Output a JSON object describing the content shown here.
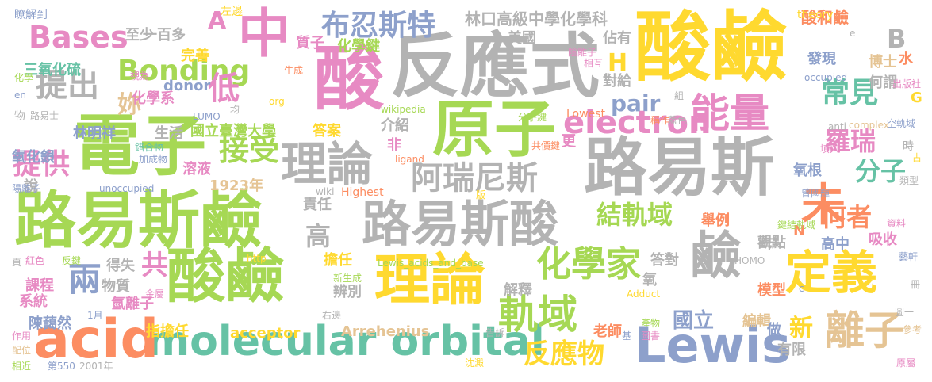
{
  "palette": {
    "gray": "#b3b3b3",
    "yellow": "#ffd92f",
    "green": "#a6d854",
    "pink": "#e78ac3",
    "blue": "#8da0cb",
    "orange": "#fc8d62",
    "teal": "#66c2a5",
    "tan": "#e5c494"
  },
  "words": [
    {
      "text": "反應式",
      "color": "gray"
    },
    {
      "text": "酸鹼",
      "color": "yellow"
    },
    {
      "text": "中",
      "color": "pink"
    },
    {
      "text": "酸",
      "color": "pink"
    },
    {
      "text": "電子",
      "color": "green"
    },
    {
      "text": "原子",
      "color": "green"
    },
    {
      "text": "路易斯",
      "color": "gray"
    },
    {
      "text": "路易斯鹼",
      "color": "green"
    },
    {
      "text": "路易斯酸",
      "color": "gray"
    },
    {
      "text": "酸鹼",
      "color": "green"
    },
    {
      "text": "理論",
      "color": "yellow"
    },
    {
      "text": "molecular orbital",
      "color": "teal"
    },
    {
      "text": "Lewis",
      "color": "blue"
    },
    {
      "text": "acid",
      "color": "orange"
    },
    {
      "text": "定義",
      "color": "yellow"
    },
    {
      "text": "鹼",
      "color": "gray"
    },
    {
      "text": "能量",
      "color": "pink"
    },
    {
      "text": "理論",
      "color": "gray"
    },
    {
      "text": "未",
      "color": "orange"
    },
    {
      "text": "離子",
      "color": "tan"
    },
    {
      "text": "軌域",
      "color": "green"
    },
    {
      "text": "化學家",
      "color": "green"
    },
    {
      "text": "布忍斯特",
      "color": "blue"
    },
    {
      "text": "阿瑞尼斯",
      "color": "gray"
    },
    {
      "text": "Bases",
      "color": "pink"
    },
    {
      "text": "Bonding",
      "color": "green"
    },
    {
      "text": "electron",
      "color": "pink"
    },
    {
      "text": "提出",
      "color": "gray"
    },
    {
      "text": "低",
      "color": "pink"
    },
    {
      "text": "接受",
      "color": "green"
    },
    {
      "text": "常見",
      "color": "teal"
    },
    {
      "text": "羅瑞",
      "color": "pink"
    },
    {
      "text": "分子",
      "color": "teal"
    },
    {
      "text": "何者",
      "color": "orange"
    },
    {
      "text": "結軌域",
      "color": "green"
    },
    {
      "text": "提供",
      "color": "pink"
    },
    {
      "text": "反應物",
      "color": "yellow"
    },
    {
      "text": "兩",
      "color": "blue"
    },
    {
      "text": "共",
      "color": "pink"
    },
    {
      "text": "A",
      "color": "pink"
    },
    {
      "text": "B",
      "color": "gray"
    },
    {
      "text": "H",
      "color": "yellow"
    },
    {
      "text": "高",
      "color": "gray"
    },
    {
      "text": "pair",
      "color": "blue"
    },
    {
      "text": "妳",
      "color": "tan"
    },
    {
      "text": "新",
      "color": "yellow"
    },
    {
      "text": "國立",
      "color": "blue"
    },
    {
      "text": "林口高級中學化學科",
      "color": "gray"
    },
    {
      "text": "酸和鹼",
      "color": "orange"
    },
    {
      "text": "theory",
      "color": "yellow"
    },
    {
      "text": "博士",
      "color": "tan"
    },
    {
      "text": "水",
      "color": "orange"
    },
    {
      "text": "林明祥",
      "color": "blue"
    },
    {
      "text": "生活",
      "color": "gray"
    },
    {
      "text": "一百多",
      "color": "gray"
    },
    {
      "text": "完善",
      "color": "yellow"
    },
    {
      "text": "三氧化硫",
      "color": "teal"
    },
    {
      "text": "化學系",
      "color": "pink"
    },
    {
      "text": "donor",
      "color": "blue"
    },
    {
      "text": "國立臺灣大學",
      "color": "green"
    },
    {
      "text": "答案",
      "color": "yellow"
    },
    {
      "text": "溶液",
      "color": "pink"
    },
    {
      "text": "1923年",
      "color": "tan"
    },
    {
      "text": "氧化鋇",
      "color": "blue"
    },
    {
      "text": "責任",
      "color": "gray"
    },
    {
      "text": "擔任",
      "color": "yellow"
    },
    {
      "text": "Arrehenius",
      "color": "tan"
    },
    {
      "text": "acceptor",
      "color": "yellow"
    },
    {
      "text": "指擔任",
      "color": "yellow"
    },
    {
      "text": "陳藹然",
      "color": "blue"
    },
    {
      "text": "氫離子",
      "color": "pink"
    },
    {
      "text": "系統",
      "color": "pink"
    },
    {
      "text": "課程",
      "color": "pink"
    },
    {
      "text": "得失",
      "color": "gray"
    },
    {
      "text": "物質",
      "color": "gray"
    },
    {
      "text": "辨別",
      "color": "gray"
    },
    {
      "text": "解釋",
      "color": "gray"
    },
    {
      "text": "老師",
      "color": "orange"
    },
    {
      "text": "編輯",
      "color": "tan"
    },
    {
      "text": "有限",
      "color": "gray"
    },
    {
      "text": "做",
      "color": "blue"
    },
    {
      "text": "模型",
      "color": "orange"
    },
    {
      "text": "氧",
      "color": "gray"
    },
    {
      "text": "答對",
      "color": "gray"
    },
    {
      "text": "觀點",
      "color": "gray"
    },
    {
      "text": "高中",
      "color": "blue"
    },
    {
      "text": "年",
      "color": "gray"
    },
    {
      "text": "舉例",
      "color": "orange"
    },
    {
      "text": "吸收",
      "color": "pink"
    },
    {
      "text": "氧根",
      "color": "blue"
    },
    {
      "text": "發現",
      "color": "blue"
    },
    {
      "text": "何謂",
      "color": "gray"
    },
    {
      "text": "質子",
      "color": "pink"
    },
    {
      "text": "化學鍵",
      "color": "green"
    },
    {
      "text": "美國",
      "color": "gray"
    },
    {
      "text": "佔有",
      "color": "gray"
    },
    {
      "text": "對給",
      "color": "gray"
    },
    {
      "text": "介紹",
      "color": "gray"
    },
    {
      "text": "非",
      "color": "pink"
    },
    {
      "text": "更",
      "color": "pink"
    },
    {
      "text": "說",
      "color": "gray"
    },
    {
      "text": "N",
      "color": "orange"
    },
    {
      "text": "G",
      "color": "yellow"
    },
    {
      "text": "至少",
      "color": "gray"
    },
    {
      "text": "左邊",
      "color": "yellow"
    },
    {
      "text": "瞭解到",
      "color": "blue"
    },
    {
      "text": "視為",
      "color": "pink"
    },
    {
      "text": "化學",
      "color": "green"
    },
    {
      "text": "en",
      "color": "blue"
    },
    {
      "text": "物",
      "color": "gray"
    },
    {
      "text": "路易士",
      "color": "gray"
    },
    {
      "text": "LUMO",
      "color": "blue"
    },
    {
      "text": "均",
      "color": "gray"
    },
    {
      "text": "org",
      "color": "yellow"
    },
    {
      "text": "生成",
      "color": "orange"
    },
    {
      "text": "wikipedia",
      "color": "green"
    },
    {
      "text": "陰離子",
      "color": "pink"
    },
    {
      "text": "相互",
      "color": "pink"
    },
    {
      "text": "分子鍵",
      "color": "green"
    },
    {
      "text": "共價鍵",
      "color": "orange"
    },
    {
      "text": "Lowest",
      "color": "orange"
    },
    {
      "text": "稱作",
      "color": "orange"
    },
    {
      "text": "藍色",
      "color": "gray"
    },
    {
      "text": "組",
      "color": "gray"
    },
    {
      "text": "出版社",
      "color": "pink"
    },
    {
      "text": "anti",
      "color": "gray"
    },
    {
      "text": "complex",
      "color": "tan"
    },
    {
      "text": "空軌域",
      "color": "blue"
    },
    {
      "text": "occupied",
      "color": "blue"
    },
    {
      "text": "e",
      "color": "gray"
    },
    {
      "text": "時",
      "color": "gray"
    },
    {
      "text": "填入",
      "color": "pink"
    },
    {
      "text": "占",
      "color": "yellow"
    },
    {
      "text": "類型",
      "color": "gray"
    },
    {
      "text": "曾國輝",
      "color": "blue"
    },
    {
      "text": "鍵結軌域",
      "color": "green"
    },
    {
      "text": "資料",
      "color": "pink"
    },
    {
      "text": "藝軒",
      "color": "blue"
    },
    {
      "text": "HOMO",
      "color": "gray"
    },
    {
      "text": "錯合物",
      "color": "teal"
    },
    {
      "text": "加成物",
      "color": "blue"
    },
    {
      "text": "unoccupied",
      "color": "blue"
    },
    {
      "text": "陽離子",
      "color": "blue"
    },
    {
      "text": "wiki",
      "color": "gray"
    },
    {
      "text": "Highest",
      "color": "orange"
    },
    {
      "text": "ligand",
      "color": "orange"
    },
    {
      "text": "版",
      "color": "yellow"
    },
    {
      "text": "頁",
      "color": "gray"
    },
    {
      "text": "紅色",
      "color": "pink"
    },
    {
      "text": "反鍵",
      "color": "green"
    },
    {
      "text": "http",
      "color": "yellow"
    },
    {
      "text": "Lewis_acids_and_base",
      "color": "green"
    },
    {
      "text": "新生成",
      "color": "green"
    },
    {
      "text": "金屬",
      "color": "pink"
    },
    {
      "text": "右邊",
      "color": "gray"
    },
    {
      "text": "1月",
      "color": "blue"
    },
    {
      "text": "Adduct",
      "color": "yellow"
    },
    {
      "text": "產物",
      "color": "green"
    },
    {
      "text": "基",
      "color": "blue"
    },
    {
      "text": "圖書",
      "color": "pink"
    },
    {
      "text": "告訴",
      "color": "gray"
    },
    {
      "text": "沈澱",
      "color": "yellow"
    },
    {
      "text": "第550",
      "color": "blue"
    },
    {
      "text": "2001年",
      "color": "gray"
    },
    {
      "text": "作用",
      "color": "pink"
    },
    {
      "text": "配位",
      "color": "tan"
    },
    {
      "text": "相近",
      "color": "green"
    },
    {
      "text": "冊",
      "color": "gray"
    },
    {
      "text": "圖一",
      "color": "gray"
    },
    {
      "text": "參考",
      "color": "tan"
    },
    {
      "text": "原屬",
      "color": "pink"
    },
    {
      "text": "c",
      "color": "blue"
    }
  ]
}
